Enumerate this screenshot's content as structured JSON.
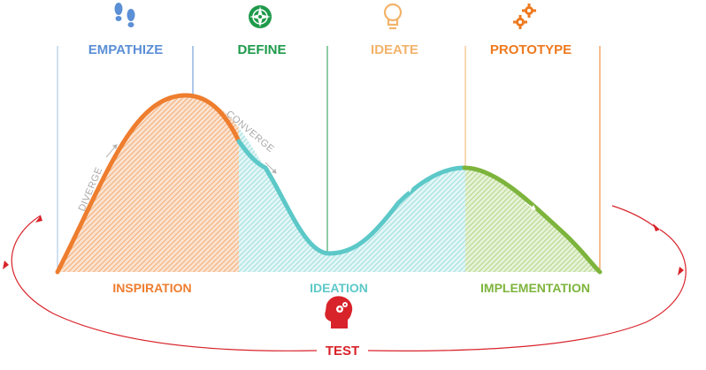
{
  "stages": [
    {
      "label": "EMPATHIZE",
      "icon": "footprints-icon",
      "color": "#5b8fd6"
    },
    {
      "label": "DEFINE",
      "icon": "compass-icon",
      "color": "#1e9a4b"
    },
    {
      "label": "IDEATE",
      "icon": "lightbulb-icon",
      "color": "#f2b36b"
    },
    {
      "label": "PROTOTYPE",
      "icon": "gears-icon",
      "color": "#ee7a1f"
    }
  ],
  "phases": [
    {
      "label": "INSPIRATION",
      "color": "#ee7d2e"
    },
    {
      "label": "IDEATION",
      "color": "#5cc8c8"
    },
    {
      "label": "IMPLEMENTATION",
      "color": "#7db43c"
    }
  ],
  "curve_labels": {
    "diverge": "DIVERGE",
    "converge": "CONVERGE"
  },
  "test": {
    "label": "TEST",
    "icon": "head-gears-icon",
    "color": "#d8232a"
  }
}
